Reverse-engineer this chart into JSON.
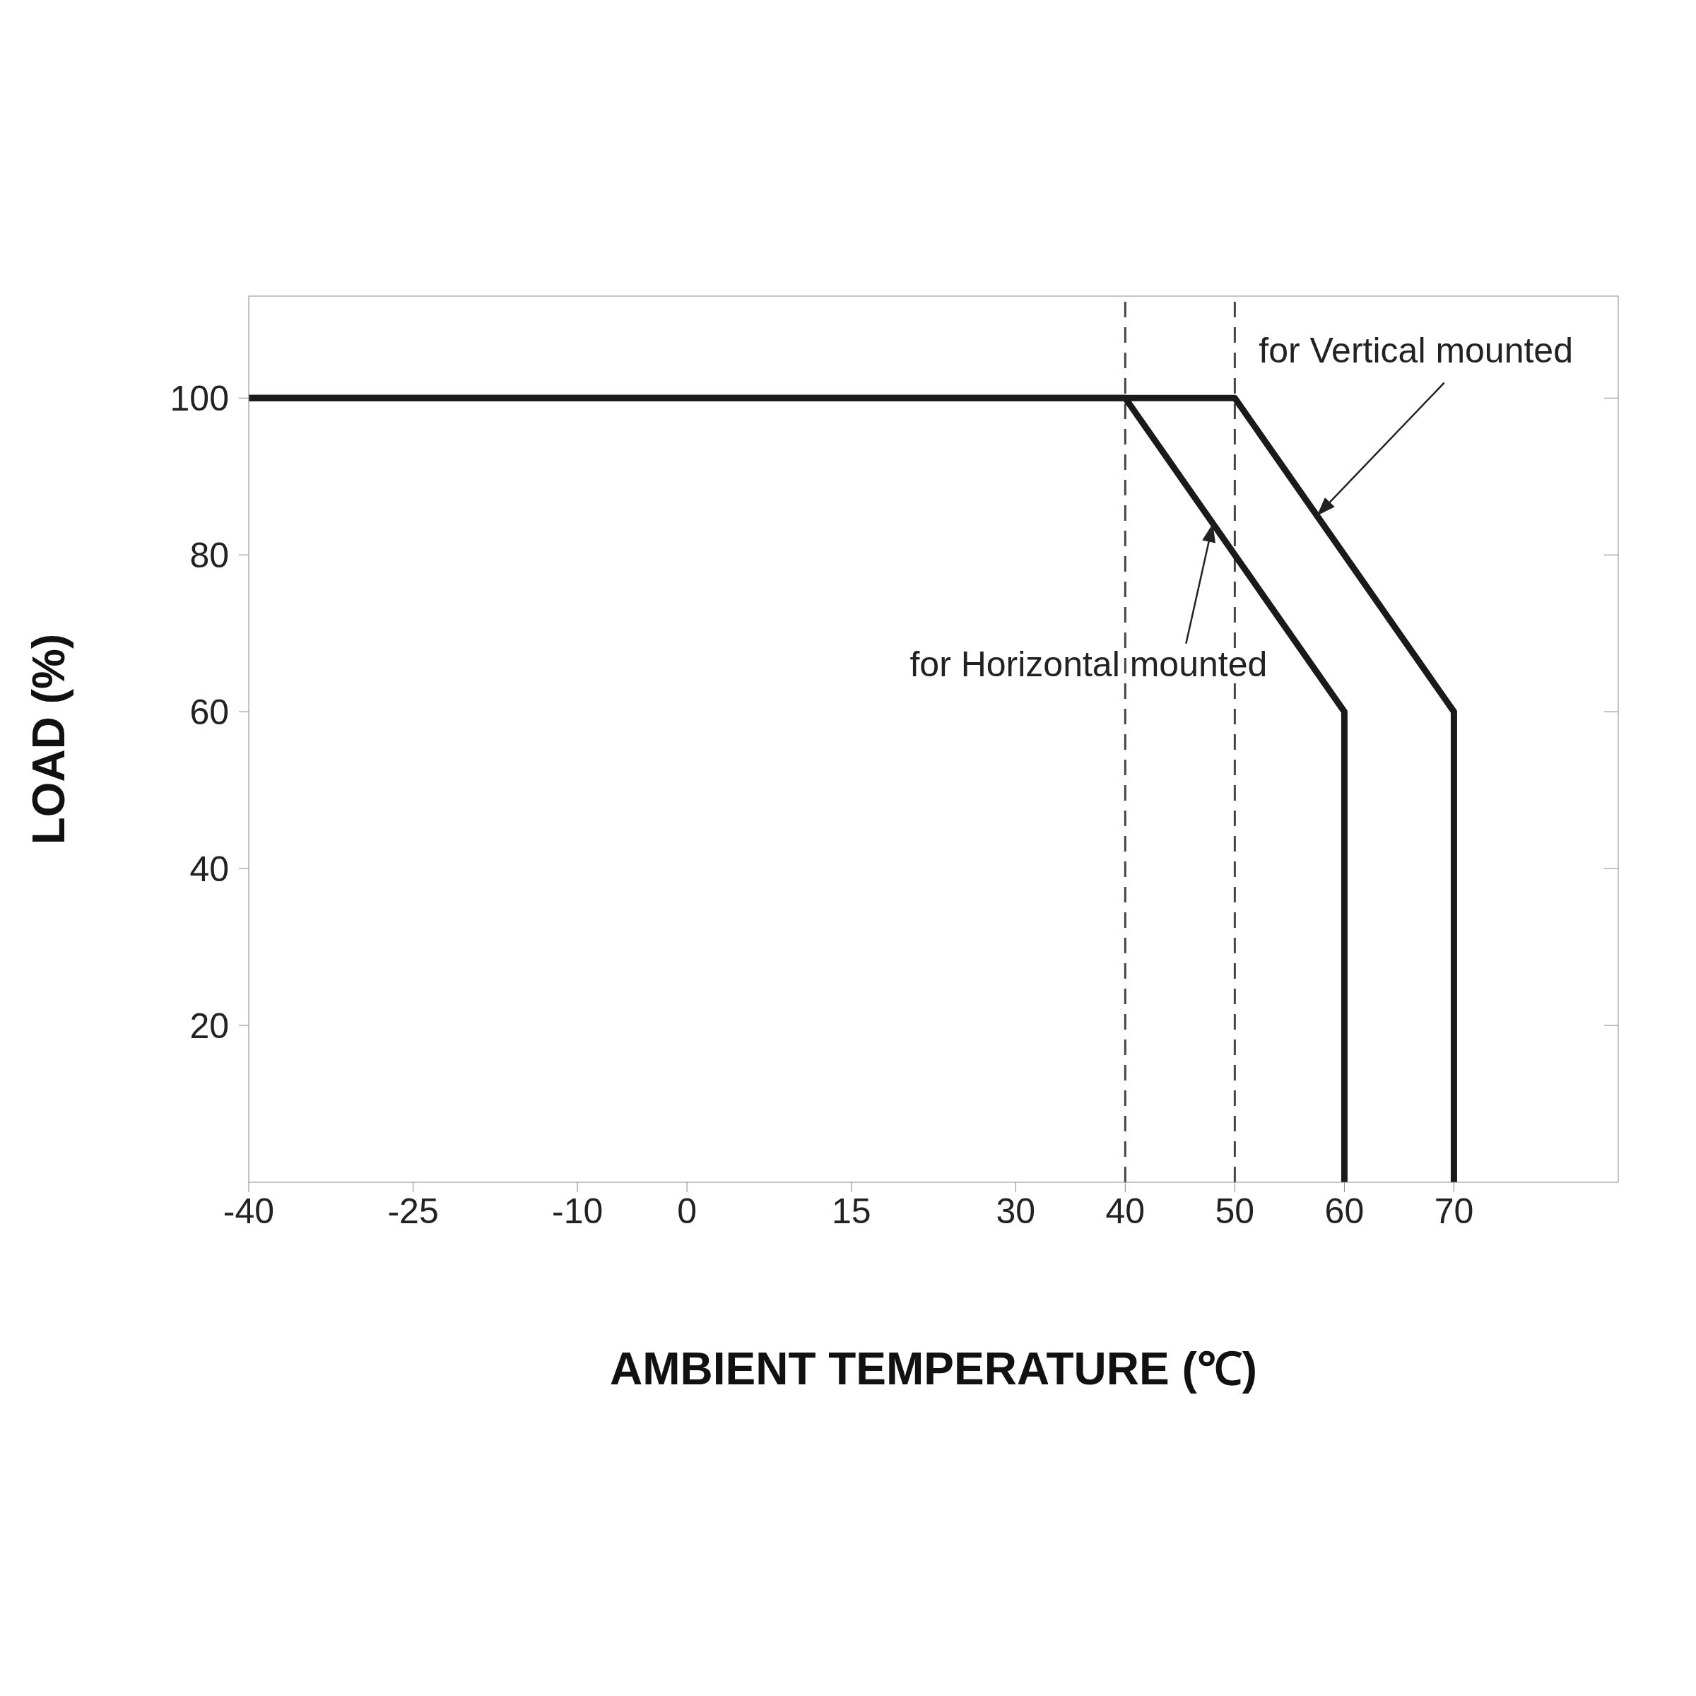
{
  "chart_data": {
    "type": "line",
    "xlabel": "AMBIENT TEMPERATURE (℃)",
    "ylabel": "LOAD (%)",
    "xlim": [
      -40,
      85
    ],
    "xticks": [
      -40,
      -25,
      -10,
      0,
      15,
      30,
      40,
      50,
      60,
      70
    ],
    "ylim": [
      0,
      113
    ],
    "yticks": [
      20,
      40,
      60,
      80,
      100
    ],
    "series": [
      {
        "color": "#1a1a1a",
        "x": [
          -40,
          40,
          60,
          60
        ],
        "values": [
          100,
          100,
          60,
          0
        ]
      },
      {
        "color": "#1a1a1a",
        "x": [
          -40,
          50,
          70,
          70
        ],
        "values": [
          100,
          100,
          60,
          0
        ]
      }
    ],
    "ref_lines": [
      {
        "axis": "x",
        "value": 40,
        "color": "#444444",
        "line_style": "dashed"
      },
      {
        "axis": "x",
        "value": 50,
        "color": "#444444",
        "line_style": "dashed"
      }
    ],
    "annotations": [
      {
        "text": "for Vertical mounted",
        "x": 57.5,
        "y": 85
      },
      {
        "text": "for Horizontal mounted",
        "x": 48,
        "y": 84
      }
    ],
    "grid": false,
    "marker": "none",
    "line_style": "solid"
  }
}
